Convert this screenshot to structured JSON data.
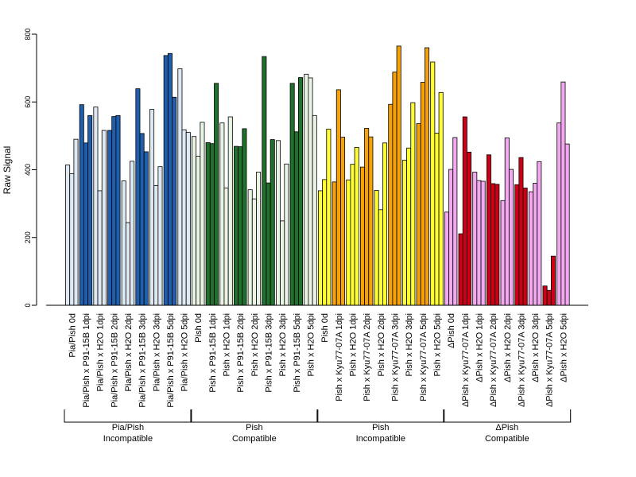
{
  "chart_data": {
    "type": "bar",
    "ylabel": "Raw Signal",
    "ylim": [
      0,
      800
    ],
    "yticks": [
      0,
      200,
      400,
      600,
      800
    ],
    "colors": {
      "light_blue": "#dfe9f4",
      "dark_blue": "#1f5fad",
      "light_green": "#eaf4e4",
      "dark_green": "#22702d",
      "yellow": "#ffff33",
      "orange": "#f5a20a",
      "pink": "#f2a9ef",
      "red": "#cc0016"
    },
    "categories": [
      {
        "label": "Pia/Pish 0d",
        "color": "light_blue",
        "values": [
          414,
          388,
          490
        ]
      },
      {
        "label": "Pia/Pish x P91-15B 1dpi",
        "color": "dark_blue",
        "values": [
          592,
          479,
          560
        ]
      },
      {
        "label": "Pia/Pish x H2O 1dpi",
        "color": "light_blue",
        "values": [
          585,
          338,
          516
        ]
      },
      {
        "label": "Pia/Pish x P91-15B 2dpi",
        "color": "dark_blue",
        "values": [
          516,
          557,
          560
        ]
      },
      {
        "label": "Pia/Pish x H2O 2dpi",
        "color": "light_blue",
        "values": [
          367,
          244,
          425
        ]
      },
      {
        "label": "Pia/Pish x P91-15B 3dpi",
        "color": "dark_blue",
        "values": [
          639,
          507,
          453
        ]
      },
      {
        "label": "Pia/Pish x H2O 3dpi",
        "color": "light_blue",
        "values": [
          578,
          353,
          409
        ]
      },
      {
        "label": "Pia/Pish x P91-15B 5dpi",
        "color": "dark_blue",
        "values": [
          737,
          743,
          614
        ]
      },
      {
        "label": "Pia/Pish x H2O 5dpi",
        "color": "light_blue",
        "values": [
          698,
          518,
          510
        ]
      },
      {
        "label": "Pish 0d",
        "color": "light_green",
        "values": [
          498,
          440,
          540
        ]
      },
      {
        "label": "Pish x P91-15B 1dpi",
        "color": "dark_green",
        "values": [
          480,
          477,
          655
        ]
      },
      {
        "label": "Pish x H2O 1dpi",
        "color": "light_green",
        "values": [
          538,
          346,
          556
        ]
      },
      {
        "label": "Pish x P91-15B 2dpi",
        "color": "dark_green",
        "values": [
          469,
          468,
          521
        ]
      },
      {
        "label": "Pish x H2O 2dpi",
        "color": "light_green",
        "values": [
          341,
          314,
          393
        ]
      },
      {
        "label": "Pish x P91-15B 3dpi",
        "color": "dark_green",
        "values": [
          734,
          361,
          489
        ]
      },
      {
        "label": "Pish x H2O 3dpi",
        "color": "light_green",
        "values": [
          486,
          249,
          417
        ]
      },
      {
        "label": "Pish x P91-15B 5dpi",
        "color": "dark_green",
        "values": [
          655,
          512,
          672
        ]
      },
      {
        "label": "Pish x H2O 5dpi",
        "color": "light_green",
        "values": [
          682,
          671,
          560
        ]
      },
      {
        "label": "Pish 0d",
        "color": "yellow",
        "values": [
          338,
          371,
          520
        ]
      },
      {
        "label": "Pish x Kyu77-07A 1dpi",
        "color": "orange",
        "values": [
          364,
          636,
          496
        ]
      },
      {
        "label": "Pish x H2O 1dpi",
        "color": "yellow",
        "values": [
          370,
          416,
          466
        ]
      },
      {
        "label": "Pish x Kyu77-07A 2dpi",
        "color": "orange",
        "values": [
          408,
          522,
          497
        ]
      },
      {
        "label": "Pish x H2O 2dpi",
        "color": "yellow",
        "values": [
          339,
          282,
          479
        ]
      },
      {
        "label": "Pish x Kyu77-07A 3dpi",
        "color": "orange",
        "values": [
          593,
          688,
          765
        ]
      },
      {
        "label": "Pish x H2O 3dpi",
        "color": "yellow",
        "values": [
          428,
          464,
          598
        ]
      },
      {
        "label": "Pish x Kyu77-07A 5dpi",
        "color": "orange",
        "values": [
          536,
          658,
          760
        ]
      },
      {
        "label": "Pish x H2O 5dpi",
        "color": "yellow",
        "values": [
          718,
          508,
          628
        ]
      },
      {
        "label": "ΔPish 0d",
        "color": "pink",
        "values": [
          275,
          401,
          495
        ]
      },
      {
        "label": "ΔPish x Kyu77-07A 1dpi",
        "color": "red",
        "values": [
          211,
          556,
          452
        ]
      },
      {
        "label": "ΔPish x H2O 1dpi",
        "color": "pink",
        "values": [
          393,
          368,
          366
        ]
      },
      {
        "label": "ΔPish x Kyu77-07A 2dpi",
        "color": "red",
        "values": [
          444,
          359,
          357
        ]
      },
      {
        "label": "ΔPish x H2O 2dpi",
        "color": "pink",
        "values": [
          309,
          494,
          401
        ]
      },
      {
        "label": "ΔPish x Kyu77-07A 3dpi",
        "color": "red",
        "values": [
          356,
          436,
          346
        ]
      },
      {
        "label": "ΔPish x H2O 3dpi",
        "color": "pink",
        "values": [
          335,
          360,
          424
        ]
      },
      {
        "label": "ΔPish x Kyu77-07A 5dpi",
        "color": "red",
        "values": [
          57,
          44,
          145
        ]
      },
      {
        "label": "ΔPish x H2O 5dpi",
        "color": "pink",
        "values": [
          538,
          659,
          476
        ]
      }
    ],
    "groups": [
      {
        "line1": "Pia/Pish",
        "line2": "Incompatible",
        "start": 0,
        "end": 8
      },
      {
        "line1": "Pish",
        "line2": "Compatible",
        "start": 9,
        "end": 17
      },
      {
        "line1": "Pish",
        "line2": "Incompatible",
        "start": 18,
        "end": 26
      },
      {
        "line1": "ΔPish",
        "line2": "Compatible",
        "start": 27,
        "end": 35
      }
    ]
  }
}
